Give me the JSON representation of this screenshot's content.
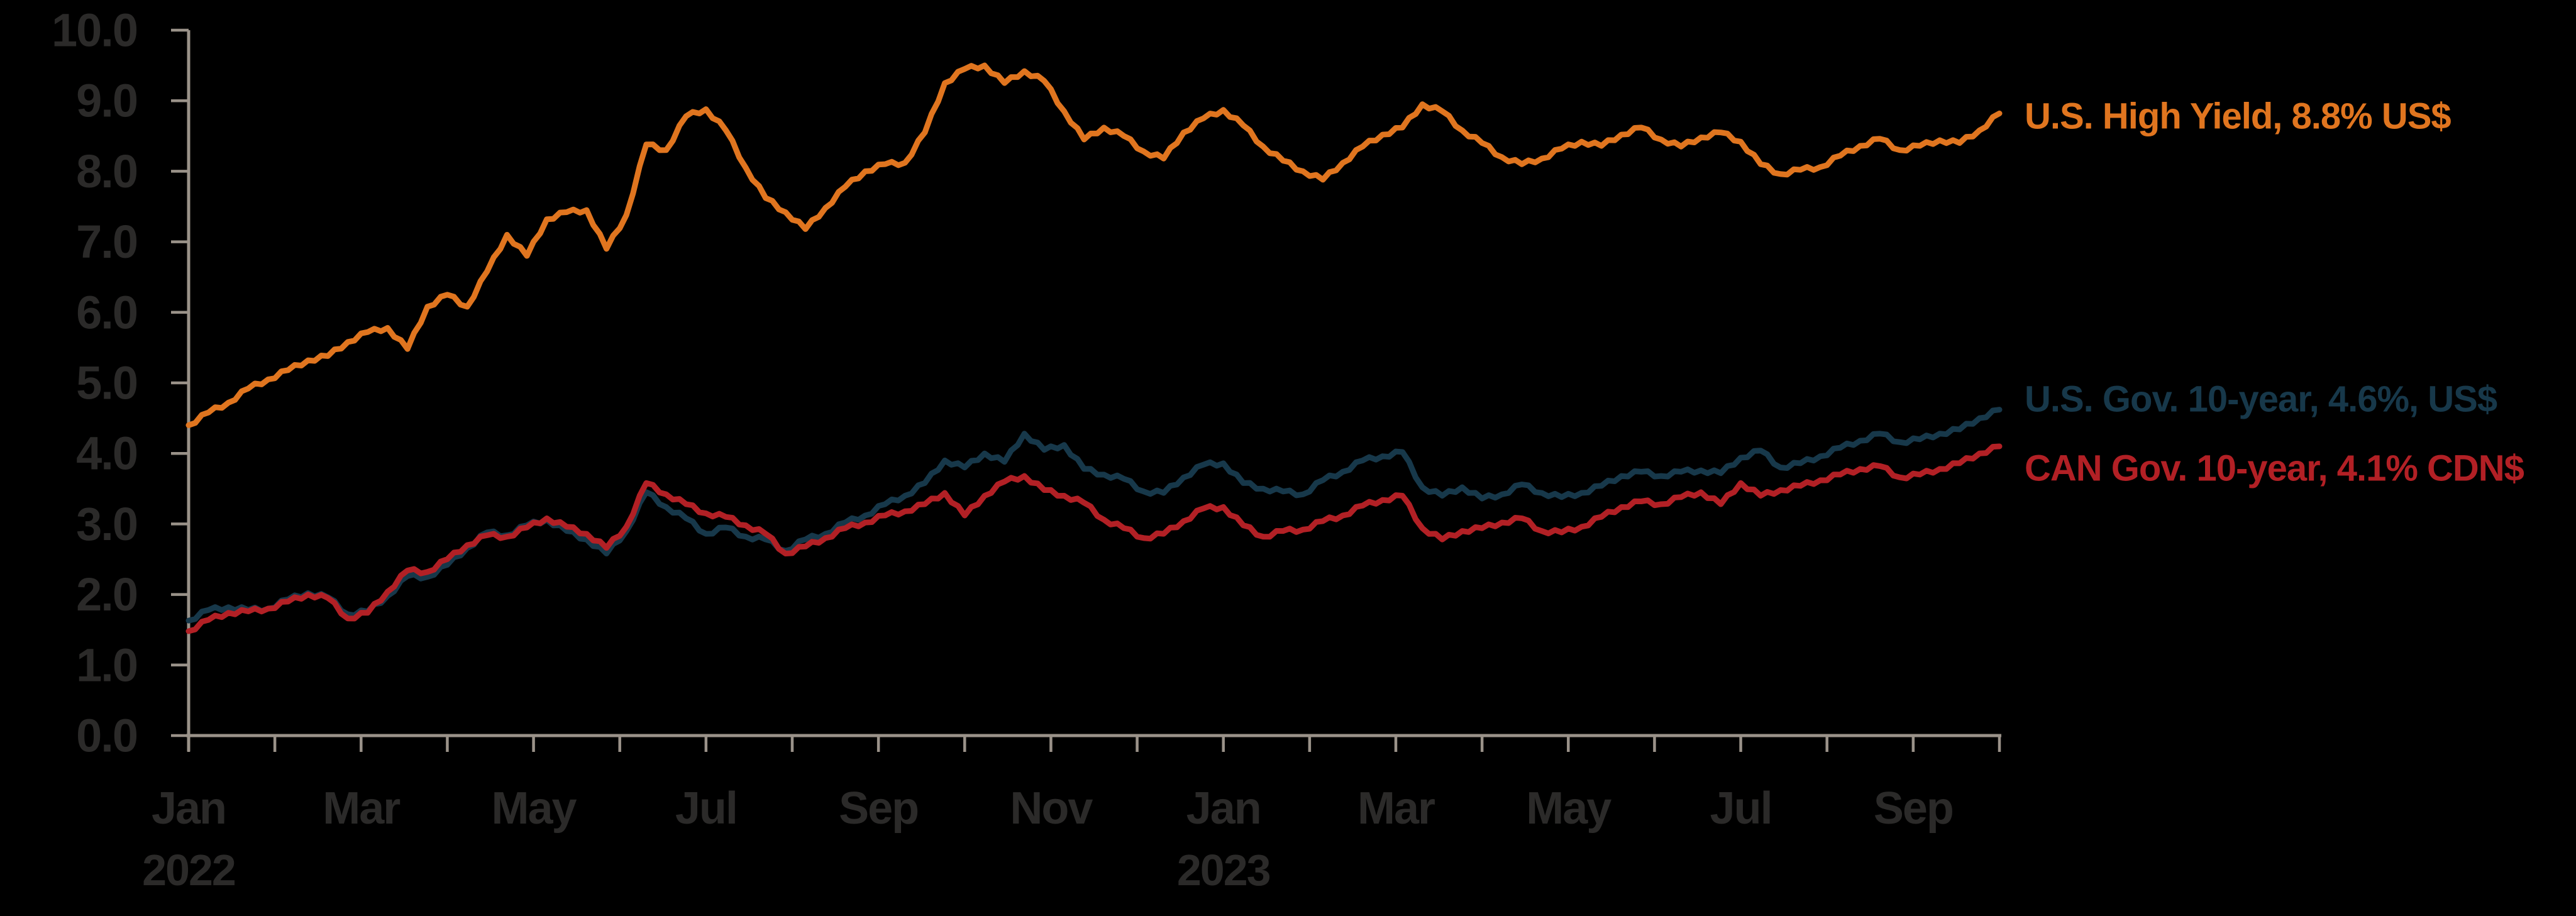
{
  "chart_data": {
    "type": "line",
    "background_color": "#000000",
    "axis_color": "#9A9289",
    "tick_text_color": "#2B2A29",
    "legend_position": "right-of-line-ends",
    "grid": false,
    "y_axis": {
      "min": 0,
      "max": 10,
      "tick_step": 1,
      "tick_labels": [
        "0.0",
        "1.0",
        "2.0",
        "3.0",
        "4.0",
        "5.0",
        "6.0",
        "7.0",
        "8.0",
        "9.0",
        "10.0"
      ]
    },
    "x_axis": {
      "first_month": "Jan 2022",
      "last_month": "Oct 2023",
      "months_spanned": 21,
      "tick_unit": "month",
      "month_ticks": [
        {
          "month_index": 0,
          "label": "Jan"
        },
        {
          "month_index": 2,
          "label": "Mar"
        },
        {
          "month_index": 4,
          "label": "May"
        },
        {
          "month_index": 6,
          "label": "Jul"
        },
        {
          "month_index": 8,
          "label": "Sep"
        },
        {
          "month_index": 10,
          "label": "Nov"
        },
        {
          "month_index": 12,
          "label": "Jan"
        },
        {
          "month_index": 14,
          "label": "Mar"
        },
        {
          "month_index": 16,
          "label": "May"
        },
        {
          "month_index": 18,
          "label": "Jul"
        },
        {
          "month_index": 20,
          "label": "Sep"
        }
      ],
      "year_labels": [
        {
          "month_index": 0,
          "label": "2022"
        },
        {
          "month_index": 12,
          "label": "2023"
        }
      ]
    },
    "frequency": "weekly (digitized from line)",
    "series": [
      {
        "id": "us-high-yield",
        "label": "U.S. High Yield, 8.8% US$",
        "end_value": 8.8,
        "color": "#E0751F",
        "values": [
          4.4,
          4.58,
          4.72,
          4.92,
          5.05,
          5.18,
          5.32,
          5.38,
          5.58,
          5.72,
          5.78,
          5.48,
          6.08,
          6.25,
          6.08,
          6.58,
          7.1,
          6.8,
          7.32,
          7.42,
          7.45,
          6.9,
          7.38,
          8.38,
          8.3,
          8.78,
          8.88,
          8.58,
          8.05,
          7.62,
          7.42,
          7.18,
          7.48,
          7.78,
          8.0,
          8.1,
          8.12,
          8.55,
          9.25,
          9.45,
          9.5,
          9.25,
          9.42,
          9.28,
          8.85,
          8.45,
          8.62,
          8.5,
          8.28,
          8.18,
          8.55,
          8.75,
          8.87,
          8.65,
          8.35,
          8.15,
          8.0,
          7.88,
          8.12,
          8.35,
          8.52,
          8.62,
          8.95,
          8.85,
          8.58,
          8.4,
          8.2,
          8.1,
          8.18,
          8.32,
          8.42,
          8.36,
          8.52,
          8.62,
          8.45,
          8.35,
          8.48,
          8.55,
          8.42,
          8.1,
          7.96,
          8.02,
          8.06,
          8.22,
          8.36,
          8.46,
          8.3,
          8.36,
          8.44,
          8.4,
          8.58,
          8.82
        ]
      },
      {
        "id": "us-gov-10-year",
        "label": "U.S. Gov. 10-year, 4.6%, US$",
        "end_value": 4.6,
        "color": "#17384A",
        "values": [
          1.63,
          1.78,
          1.82,
          1.78,
          1.8,
          1.93,
          2.02,
          1.96,
          1.72,
          1.76,
          1.98,
          2.26,
          2.25,
          2.42,
          2.66,
          2.88,
          2.84,
          2.98,
          3.06,
          2.9,
          2.78,
          2.58,
          2.9,
          3.45,
          3.24,
          3.08,
          2.86,
          2.95,
          2.82,
          2.78,
          2.62,
          2.78,
          2.86,
          3.02,
          3.12,
          3.28,
          3.4,
          3.58,
          3.9,
          3.8,
          4.0,
          3.88,
          4.28,
          4.05,
          4.12,
          3.78,
          3.7,
          3.64,
          3.46,
          3.44,
          3.66,
          3.84,
          3.86,
          3.58,
          3.5,
          3.46,
          3.42,
          3.62,
          3.74,
          3.9,
          3.96,
          4.02,
          3.52,
          3.4,
          3.52,
          3.36,
          3.42,
          3.56,
          3.44,
          3.38,
          3.44,
          3.54,
          3.68,
          3.74,
          3.68,
          3.74,
          3.76,
          3.72,
          3.94,
          4.04,
          3.8,
          3.86,
          3.96,
          4.08,
          4.18,
          4.28,
          4.16,
          4.2,
          4.28,
          4.34,
          4.5,
          4.62
        ]
      },
      {
        "id": "can-gov-10-year",
        "label": "CAN Gov. 10-year, 4.1% CDN$",
        "end_value": 4.1,
        "color": "#B22025",
        "values": [
          1.48,
          1.64,
          1.74,
          1.76,
          1.8,
          1.9,
          2.0,
          1.95,
          1.66,
          1.74,
          2.04,
          2.34,
          2.32,
          2.5,
          2.7,
          2.84,
          2.82,
          2.95,
          3.08,
          2.96,
          2.86,
          2.66,
          2.96,
          3.58,
          3.42,
          3.28,
          3.15,
          3.1,
          2.98,
          2.86,
          2.58,
          2.68,
          2.8,
          2.94,
          3.02,
          3.12,
          3.18,
          3.28,
          3.44,
          3.12,
          3.4,
          3.6,
          3.68,
          3.48,
          3.4,
          3.3,
          3.06,
          2.94,
          2.8,
          2.86,
          3.04,
          3.22,
          3.24,
          2.98,
          2.82,
          2.9,
          2.92,
          3.04,
          3.12,
          3.26,
          3.34,
          3.4,
          2.94,
          2.78,
          2.9,
          2.94,
          3.02,
          3.08,
          2.9,
          2.88,
          2.96,
          3.1,
          3.24,
          3.32,
          3.28,
          3.38,
          3.45,
          3.28,
          3.58,
          3.4,
          3.48,
          3.54,
          3.62,
          3.7,
          3.78,
          3.82,
          3.66,
          3.7,
          3.78,
          3.86,
          4.0,
          4.1
        ]
      }
    ]
  }
}
